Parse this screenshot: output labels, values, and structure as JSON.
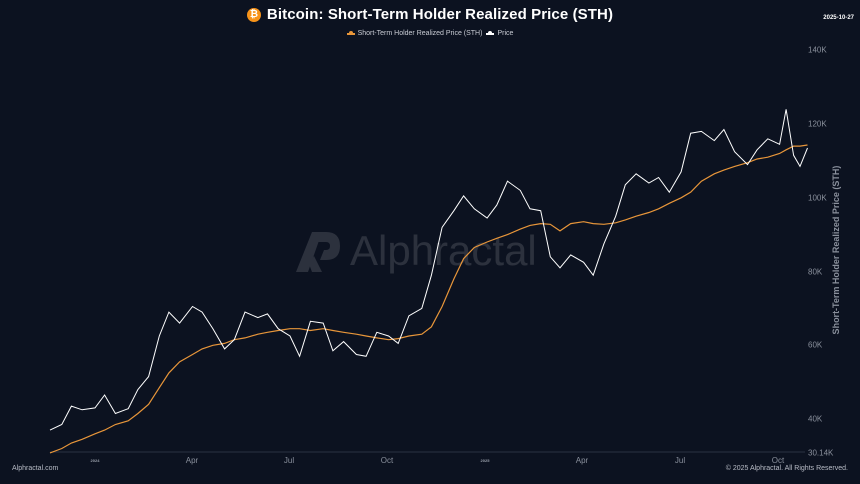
{
  "header": {
    "title": "Bitcoin: Short-Term Holder Realized Price (STH)",
    "date": "2025-10-27",
    "icon": "bitcoin-icon"
  },
  "legend": [
    {
      "label": "Short-Term Holder Realized Price (STH)",
      "color": "#f0a040"
    },
    {
      "label": "Price",
      "color": "#ffffff"
    }
  ],
  "watermark": "Alphractal",
  "footer": {
    "left": "Alphractal.com",
    "right": "© 2025 Alphractal. All Rights Reserved."
  },
  "colors": {
    "background": "#0c1220",
    "sth": "#e8963a",
    "price": "#ffffff",
    "axis_text": "#8a909c"
  },
  "chart_data": {
    "type": "line",
    "title": "Bitcoin: Short-Term Holder Realized Price (STH)",
    "xlabel": "",
    "ylabel": "Short-Term Holder Realized Price (STH)",
    "ylim": [
      30140,
      145000
    ],
    "y_ticks": [
      "30.14K",
      "40K",
      "60K",
      "80K",
      "100K",
      "120K",
      "140K"
    ],
    "x_ticks": [
      "2024",
      "Apr",
      "Jul",
      "Oct",
      "2025",
      "Apr",
      "Jul",
      "Oct"
    ],
    "grid": false,
    "legend_position": "top-center",
    "x": [
      "2023-11-20",
      "2023-12-01",
      "2023-12-10",
      "2023-12-20",
      "2024-01-01",
      "2024-01-10",
      "2024-01-20",
      "2024-02-01",
      "2024-02-10",
      "2024-02-20",
      "2024-03-01",
      "2024-03-10",
      "2024-03-20",
      "2024-04-01",
      "2024-04-10",
      "2024-04-20",
      "2024-05-01",
      "2024-05-10",
      "2024-05-20",
      "2024-06-01",
      "2024-06-10",
      "2024-06-20",
      "2024-07-01",
      "2024-07-10",
      "2024-07-20",
      "2024-08-01",
      "2024-08-10",
      "2024-08-20",
      "2024-09-01",
      "2024-09-10",
      "2024-09-20",
      "2024-10-01",
      "2024-10-10",
      "2024-10-20",
      "2024-11-01",
      "2024-11-10",
      "2024-11-20",
      "2024-12-01",
      "2024-12-10",
      "2024-12-20",
      "2025-01-01",
      "2025-01-10",
      "2025-01-20",
      "2025-02-01",
      "2025-02-10",
      "2025-02-20",
      "2025-03-01",
      "2025-03-10",
      "2025-03-20",
      "2025-04-01",
      "2025-04-10",
      "2025-04-20",
      "2025-05-01",
      "2025-05-10",
      "2025-05-20",
      "2025-06-01",
      "2025-06-10",
      "2025-06-20",
      "2025-07-01",
      "2025-07-10",
      "2025-07-20",
      "2025-08-01",
      "2025-08-10",
      "2025-08-20",
      "2025-09-01",
      "2025-09-10",
      "2025-09-20",
      "2025-10-01",
      "2025-10-07",
      "2025-10-14",
      "2025-10-20",
      "2025-10-27"
    ],
    "series": [
      {
        "name": "Price",
        "color": "#ffffff",
        "values": [
          37000,
          38500,
          43500,
          42500,
          43000,
          46500,
          41500,
          42800,
          48000,
          51500,
          62500,
          69000,
          66000,
          70500,
          69000,
          64500,
          59000,
          61500,
          69000,
          67500,
          68500,
          64500,
          62500,
          57000,
          66500,
          66000,
          58500,
          61000,
          57500,
          57000,
          63500,
          62500,
          60500,
          68000,
          70000,
          79000,
          92000,
          96500,
          100500,
          97000,
          94500,
          98000,
          104500,
          102000,
          97000,
          96500,
          84000,
          81000,
          84500,
          82500,
          79000,
          87500,
          95000,
          103500,
          106500,
          104000,
          105500,
          101500,
          107000,
          117500,
          118000,
          115500,
          118500,
          112500,
          109000,
          113000,
          116000,
          114500,
          124000,
          111500,
          108500,
          113500
        ]
      },
      {
        "name": "Short-Term Holder Realized Price (STH)",
        "color": "#e8963a",
        "values": [
          30800,
          32000,
          33500,
          34500,
          36000,
          37000,
          38500,
          39500,
          41500,
          44000,
          48500,
          52500,
          55500,
          57500,
          59000,
          60000,
          60500,
          61500,
          62000,
          63000,
          63500,
          64000,
          64500,
          64500,
          64000,
          64500,
          64000,
          63500,
          63000,
          62500,
          62000,
          61500,
          61800,
          62500,
          63000,
          65000,
          70500,
          78000,
          83500,
          86500,
          88000,
          89000,
          90000,
          91500,
          92500,
          93000,
          92800,
          91000,
          93000,
          93500,
          93000,
          92800,
          93200,
          94000,
          95000,
          96000,
          97000,
          98500,
          100000,
          101500,
          104500,
          106500,
          107500,
          108500,
          109500,
          110500,
          111000,
          112000,
          113000,
          114000,
          114000,
          114300
        ]
      }
    ]
  }
}
